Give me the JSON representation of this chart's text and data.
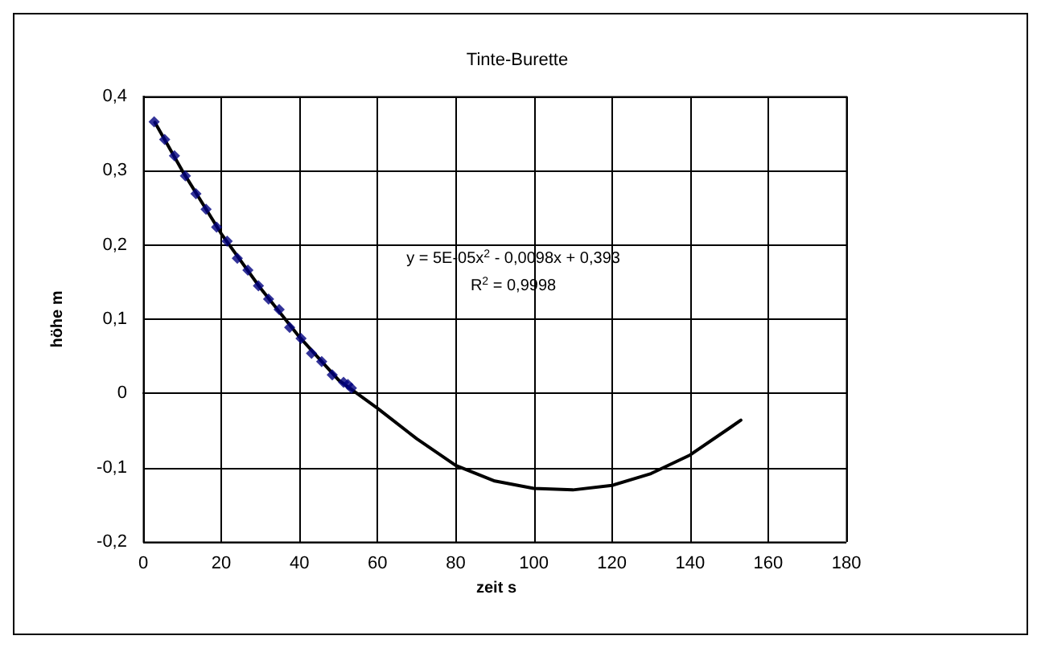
{
  "chart_data": {
    "type": "scatter",
    "title": "Tinte-Burette",
    "xlabel": "zeit s",
    "ylabel": "höhe m",
    "xlim": [
      0,
      180
    ],
    "xticks": [
      0,
      20,
      40,
      60,
      80,
      100,
      120,
      140,
      160,
      180
    ],
    "ylim": [
      -0.2,
      0.4
    ],
    "yticks": [
      {
        "value": -0.2,
        "label": "-0,2"
      },
      {
        "value": -0.1,
        "label": "-0,1"
      },
      {
        "value": 0,
        "label": "0"
      },
      {
        "value": 0.1,
        "label": "0,1"
      },
      {
        "value": 0.2,
        "label": "0,2"
      },
      {
        "value": 0.3,
        "label": "0,3"
      },
      {
        "value": 0.4,
        "label": "0,4"
      }
    ],
    "grid": true,
    "series": [
      {
        "color": "#000080",
        "marker": "diamond",
        "x": [
          2.8,
          5.5,
          8.0,
          10.8,
          13.5,
          16.1,
          18.8,
          21.5,
          24.1,
          26.8,
          29.5,
          32.1,
          34.8,
          37.5,
          40.4,
          43.1,
          45.7,
          48.4,
          51.3,
          52.4,
          53.3
        ],
        "values": [
          0.366,
          0.342,
          0.32,
          0.293,
          0.269,
          0.248,
          0.224,
          0.205,
          0.182,
          0.166,
          0.145,
          0.127,
          0.113,
          0.089,
          0.074,
          0.054,
          0.043,
          0.025,
          0.015,
          0.012,
          0.007
        ]
      },
      {
        "type": "line",
        "color": "#000000",
        "marker": "none",
        "line_style": "solid",
        "x": [
          3,
          10,
          20,
          30,
          40,
          50,
          60,
          70,
          80,
          90,
          100,
          110,
          120,
          130,
          140,
          150,
          153
        ],
        "values": [
          0.365,
          0.3,
          0.215,
          0.142,
          0.076,
          0.018,
          -0.02,
          -0.061,
          -0.097,
          -0.118,
          -0.128,
          -0.13,
          -0.124,
          -0.108,
          -0.083,
          -0.047,
          -0.036
        ]
      }
    ],
    "annotations": [
      "y = 5E-05x$^{2}$ - 0,0098x + 0,393",
      "R$^{2}$ = 0,9998"
    ]
  }
}
